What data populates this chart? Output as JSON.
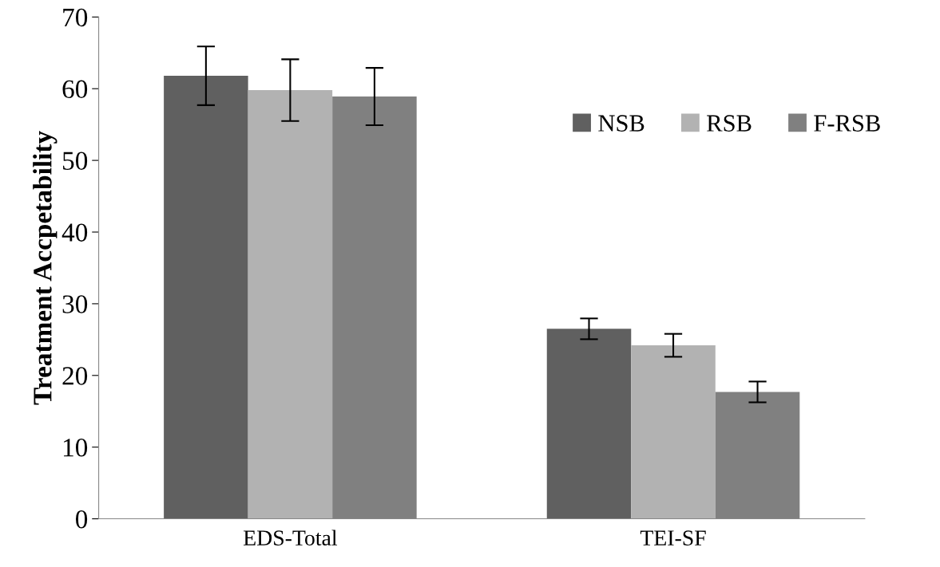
{
  "chart_data": {
    "type": "bar",
    "ylabel": "Treatment Accpetability",
    "categories": [
      "EDS-Total",
      "TEI-SF"
    ],
    "series": [
      {
        "name": "NSB",
        "color": "#606060",
        "values": [
          61.8,
          26.5
        ],
        "errors": [
          4.1,
          1.45
        ]
      },
      {
        "name": "RSB",
        "color": "#b2b2b2",
        "values": [
          59.8,
          24.2
        ],
        "errors": [
          4.3,
          1.6
        ]
      },
      {
        "name": "F-RSB",
        "color": "#808080",
        "values": [
          58.9,
          17.7
        ],
        "errors": [
          4.0,
          1.45
        ]
      }
    ],
    "ylim": [
      0,
      70
    ],
    "yticks": [
      0,
      10,
      20,
      30,
      40,
      50,
      60,
      70
    ],
    "grid": false,
    "legend": "top right"
  }
}
